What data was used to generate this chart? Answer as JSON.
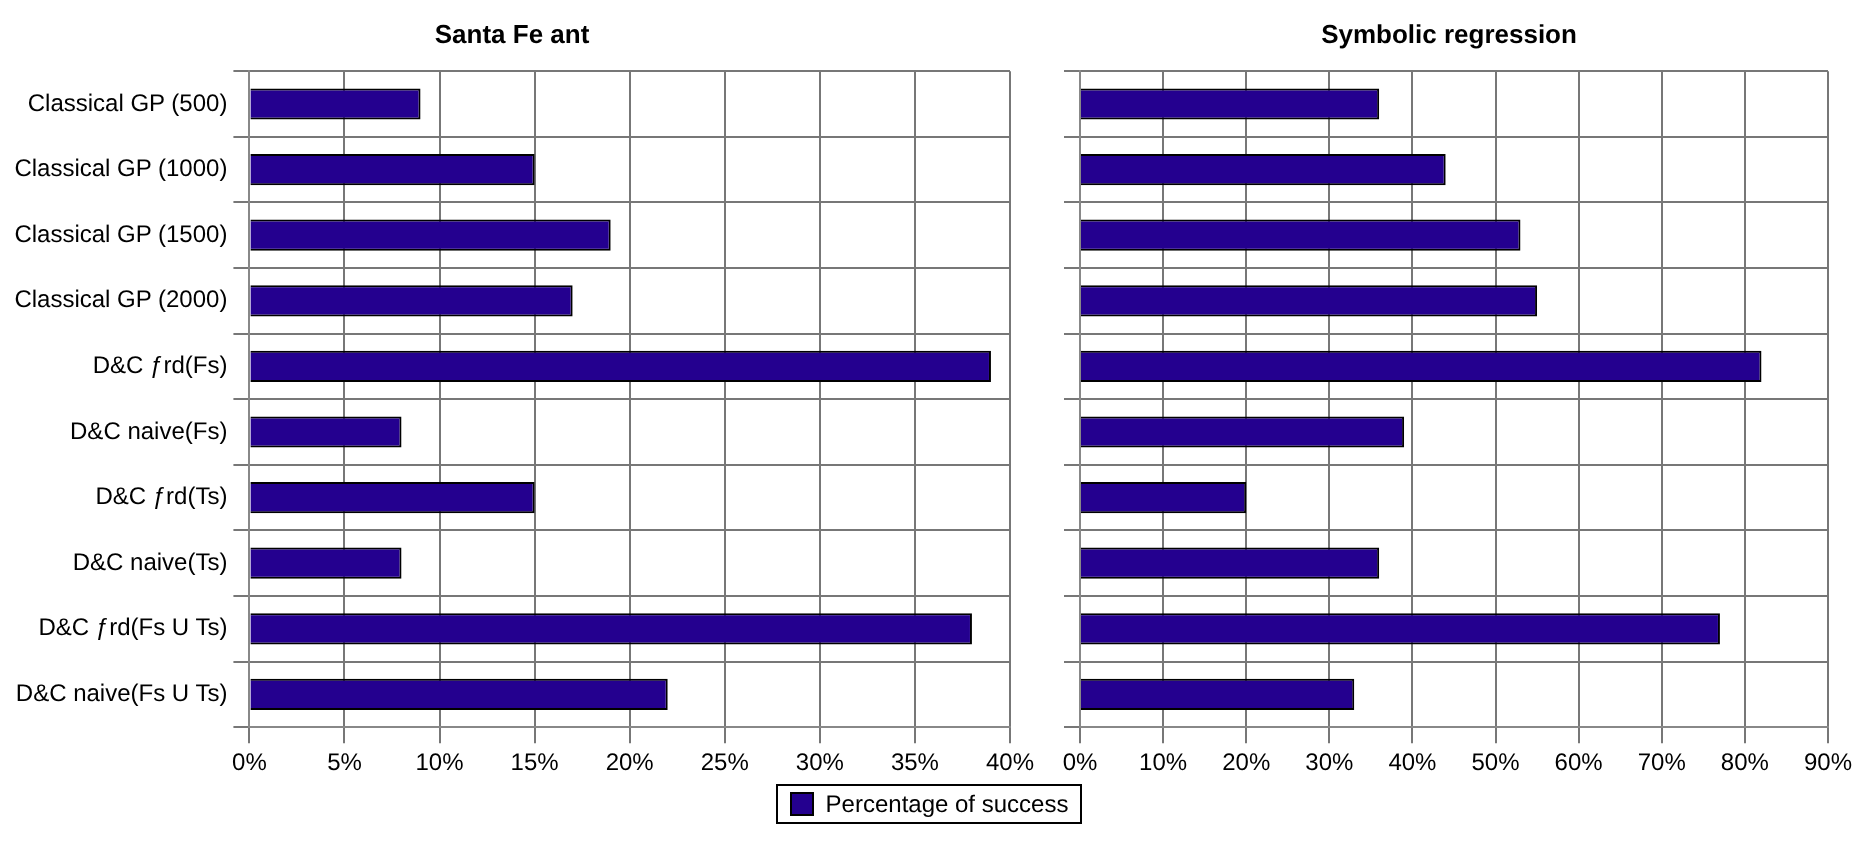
{
  "chart_data": [
    {
      "type": "bar",
      "title": "Santa Fe ant",
      "orientation": "horizontal",
      "categories": [
        "Classical GP (500)",
        "Classical GP (1000)",
        "Classical GP (1500)",
        "Classical GP (2000)",
        "D&C ƒrd(Fs)",
        "D&C naive(Fs)",
        "D&C ƒrd(Ts)",
        "D&C naive(Ts)",
        "D&C ƒrd(Fs U Ts)",
        "D&C naive(Fs U Ts)"
      ],
      "series": [
        {
          "name": "Percentage of success",
          "color": "#24008f",
          "values": [
            9,
            15,
            19,
            17,
            39,
            8,
            15,
            8,
            38,
            22
          ]
        }
      ],
      "xlim": [
        0,
        40
      ],
      "xticks": [
        {
          "value": 0,
          "label": "0%"
        },
        {
          "value": 5,
          "label": "5%"
        },
        {
          "value": 10,
          "label": "10%"
        },
        {
          "value": 15,
          "label": "15%"
        },
        {
          "value": 20,
          "label": "20%"
        },
        {
          "value": 25,
          "label": "25%"
        },
        {
          "value": 30,
          "label": "30%"
        },
        {
          "value": 35,
          "label": "35%"
        },
        {
          "value": 40,
          "label": "40%"
        }
      ],
      "grid": true,
      "legend": "bottom"
    },
    {
      "type": "bar",
      "title": "Symbolic regression",
      "orientation": "horizontal",
      "categories": [
        null,
        null,
        null,
        null,
        null,
        null,
        null,
        null,
        null,
        null
      ],
      "series": [
        {
          "color": "#24008f",
          "values": [
            36,
            44,
            53,
            55,
            82,
            39,
            20,
            36,
            77,
            33
          ]
        }
      ],
      "xlim": [
        0,
        90
      ],
      "xticks": [
        {
          "value": 0,
          "label": "0%"
        },
        {
          "value": 10,
          "label": "10%"
        },
        {
          "value": 20,
          "label": "20%"
        },
        {
          "value": 30,
          "label": "30%"
        },
        {
          "value": 40,
          "label": "40%"
        },
        {
          "value": 50,
          "label": "50%"
        },
        {
          "value": 60,
          "label": "60%"
        },
        {
          "value": 70,
          "label": "70%"
        },
        {
          "value": 80,
          "label": "80%"
        },
        {
          "value": 90,
          "label": "90%"
        }
      ],
      "grid": true,
      "tick_labels": "x"
    }
  ]
}
